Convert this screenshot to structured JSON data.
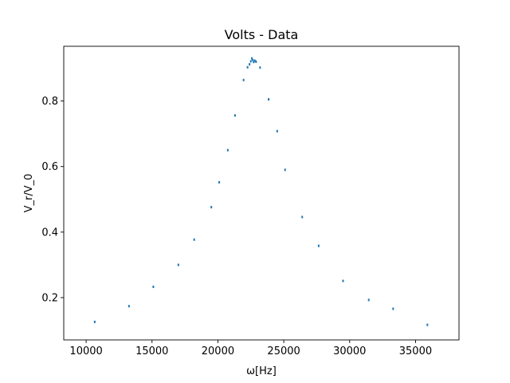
{
  "chart_data": {
    "type": "scatter",
    "title": "Volts - Data",
    "xlabel": "ω[Hz]",
    "ylabel": "V_r/V_0",
    "xlim": [
      8300,
      38300
    ],
    "ylim": [
      0.071,
      0.967
    ],
    "xticks": [
      10000,
      15000,
      20000,
      25000,
      30000,
      35000
    ],
    "yticks": [
      0.2,
      0.4,
      0.6,
      0.8
    ],
    "ytick_labels": [
      "0.2",
      "0.4",
      "0.6",
      "0.8"
    ],
    "grid": false,
    "marker_color": "#1f77b4",
    "series": [
      {
        "x": [
          10650,
          13250,
          15100,
          17000,
          18200,
          19500,
          20100,
          20750,
          21300,
          21950,
          22250,
          22400,
          22500,
          22580,
          22650,
          22720,
          22800,
          22900,
          23200,
          23850,
          24500,
          25100,
          26400,
          27650,
          29500,
          31450,
          33300,
          35900
        ],
        "y": [
          0.126,
          0.174,
          0.233,
          0.3,
          0.377,
          0.476,
          0.552,
          0.65,
          0.756,
          0.864,
          0.903,
          0.912,
          0.921,
          0.93,
          0.925,
          0.919,
          0.923,
          0.92,
          0.902,
          0.805,
          0.708,
          0.59,
          0.446,
          0.358,
          0.251,
          0.193,
          0.166,
          0.117
        ]
      }
    ]
  }
}
